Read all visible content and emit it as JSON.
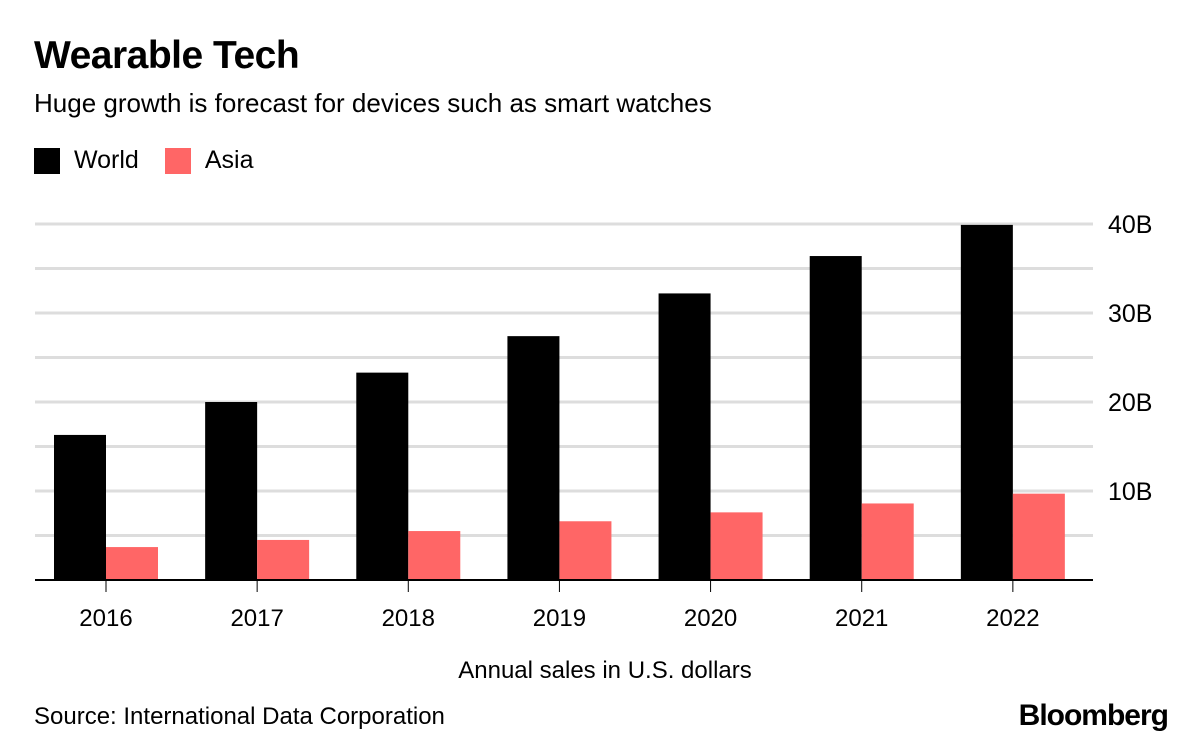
{
  "chart_data": {
    "type": "bar",
    "title": "Wearable Tech",
    "subtitle": "Huge growth is forecast for devices such as smart watches",
    "categories": [
      "2016",
      "2017",
      "2018",
      "2019",
      "2020",
      "2021",
      "2022"
    ],
    "series": [
      {
        "name": "World",
        "color": "#000000",
        "values": [
          16.3,
          20.0,
          23.3,
          27.4,
          32.2,
          36.4,
          39.9
        ]
      },
      {
        "name": "Asia",
        "color": "#ff6666",
        "values": [
          3.7,
          4.5,
          5.5,
          6.6,
          7.6,
          8.6,
          9.7
        ]
      }
    ],
    "unit": "B",
    "ylim": [
      0,
      40
    ],
    "yticks": [
      10,
      20,
      30,
      40
    ],
    "ytick_labels": [
      "10B",
      "20B",
      "30B",
      "40B"
    ],
    "gridlines_every": 5,
    "grid": true,
    "yaxis_side": "right",
    "legend_position": "top-left",
    "xlabel": "Annual sales in U.S. dollars",
    "source": "Source: International Data Corporation"
  },
  "branding": {
    "logo": "Bloomberg"
  }
}
